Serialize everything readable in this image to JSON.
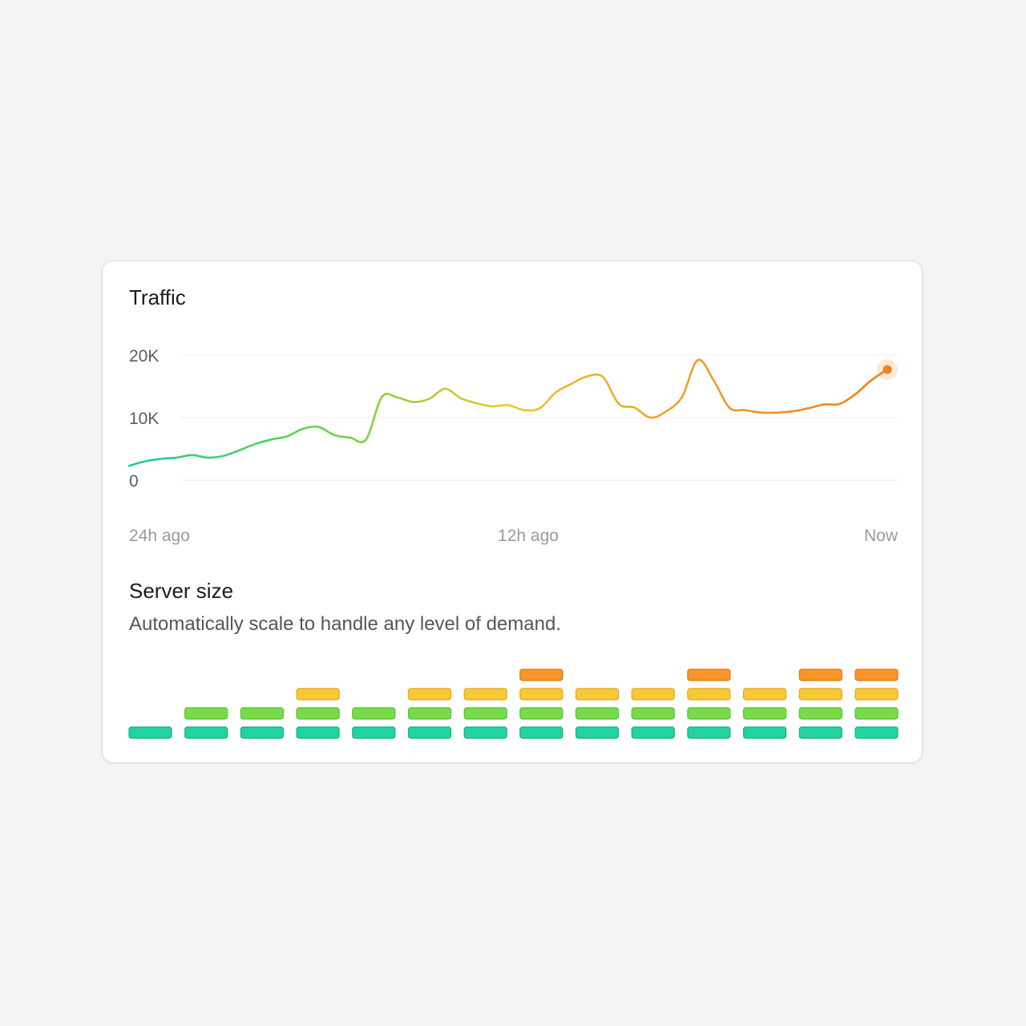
{
  "traffic": {
    "title": "Traffic",
    "y_ticks": [
      "20K",
      "10K",
      "0"
    ],
    "x_ticks": [
      "24h ago",
      "12h ago",
      "Now"
    ]
  },
  "chart_data": {
    "type": "line",
    "title": "Traffic",
    "xlabel": "",
    "ylabel": "",
    "ylim": [
      0,
      20000
    ],
    "x_tick_labels": [
      "24h ago",
      "12h ago",
      "Now"
    ],
    "grid": true,
    "series": [
      {
        "x": [
          0,
          0.5,
          1,
          1.5,
          2,
          2.5,
          3,
          3.5,
          4,
          4.5,
          5,
          5.5,
          6,
          6.5,
          7,
          7.5,
          8,
          8.5,
          9,
          9.5,
          10,
          10.5,
          11,
          11.5,
          12,
          12.5,
          13,
          13.5,
          14,
          14.5,
          15,
          15.5,
          16,
          16.5,
          17,
          17.5,
          18,
          18.5,
          19,
          19.5,
          20,
          20.5,
          21,
          21.5,
          22,
          22.5,
          23,
          23.5,
          24
        ],
        "y": [
          2300,
          3000,
          3400,
          3600,
          4000,
          3600,
          3900,
          4800,
          5800,
          6500,
          7000,
          8200,
          8500,
          7200,
          6800,
          6500,
          13300,
          13200,
          12500,
          13000,
          14600,
          13100,
          12300,
          11800,
          12000,
          11200,
          11500,
          14000,
          15400,
          16600,
          16500,
          12200,
          11600,
          10000,
          11000,
          13300,
          19200,
          16000,
          11600,
          11200,
          10800,
          10800,
          11000,
          11500,
          12100,
          12200,
          13800,
          16000,
          17700
        ]
      }
    ],
    "line_colors": [
      "#22c998",
      "#5fd54b",
      "#e8c828",
      "#f29a2a",
      "#f0801a"
    ],
    "endpoint_color": "#f0801a"
  },
  "server_size": {
    "title": "Server size",
    "description": "Automatically scale to handle any level of demand.",
    "levels": [
      1,
      2,
      2,
      3,
      2,
      3,
      3,
      4,
      3,
      3,
      4,
      3,
      4,
      4
    ],
    "tier_colors": [
      "#22d3a0",
      "#76dc4a",
      "#f7c93a",
      "#f7942a"
    ],
    "tier_borders": [
      "#14b086",
      "#58bf31",
      "#dca91a",
      "#dd7715"
    ]
  }
}
